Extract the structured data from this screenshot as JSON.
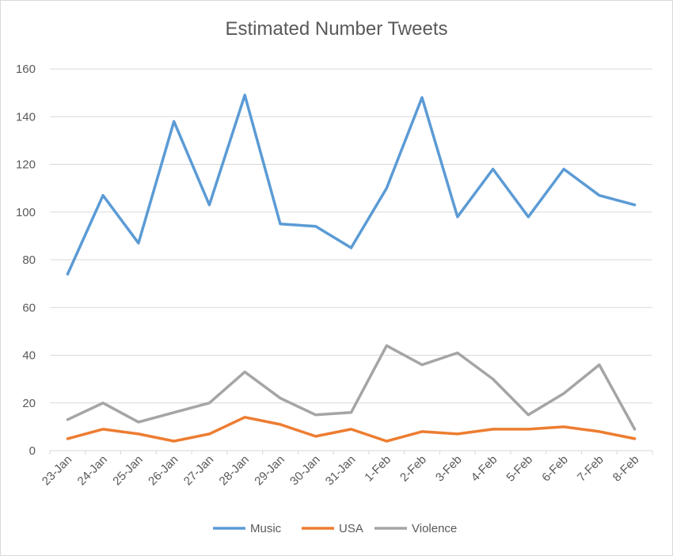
{
  "chart_data": {
    "type": "line",
    "title": "Estimated Number Tweets",
    "xlabel": "",
    "ylabel": "",
    "categories": [
      "23-Jan",
      "24-Jan",
      "25-Jan",
      "26-Jan",
      "27-Jan",
      "28-Jan",
      "29-Jan",
      "30-Jan",
      "31-Jan",
      "1-Feb",
      "2-Feb",
      "3-Feb",
      "4-Feb",
      "5-Feb",
      "6-Feb",
      "7-Feb",
      "8-Feb"
    ],
    "ylim": [
      0,
      160
    ],
    "yticks": [
      0,
      20,
      40,
      60,
      80,
      100,
      120,
      140,
      160
    ],
    "grid": true,
    "legend_position": "bottom",
    "series": [
      {
        "name": "Music",
        "color": "#5b9bd5",
        "values": [
          74,
          107,
          87,
          138,
          103,
          149,
          95,
          94,
          85,
          110,
          148,
          98,
          118,
          98,
          118,
          107,
          103
        ]
      },
      {
        "name": "USA",
        "color": "#ed7d31",
        "values": [
          5,
          9,
          7,
          4,
          7,
          14,
          11,
          6,
          9,
          4,
          8,
          7,
          9,
          9,
          10,
          8,
          5
        ]
      },
      {
        "name": "Violence",
        "color": "#a5a5a5",
        "values": [
          13,
          20,
          12,
          16,
          20,
          33,
          22,
          15,
          16,
          44,
          36,
          41,
          30,
          15,
          24,
          36,
          9
        ]
      }
    ]
  }
}
